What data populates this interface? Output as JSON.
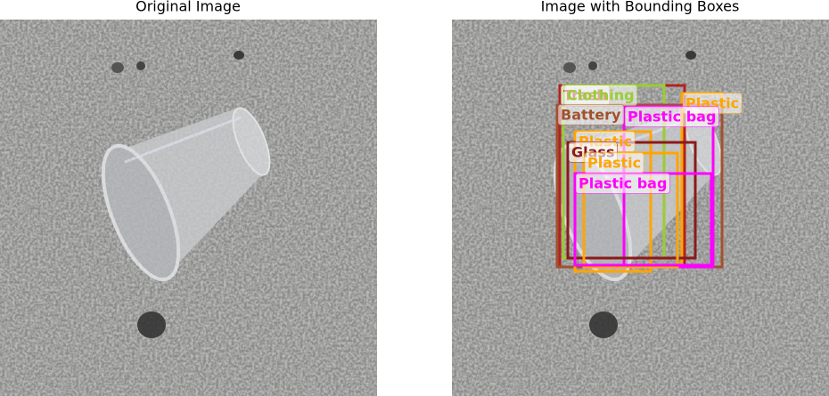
{
  "left_panel": {
    "title": "Original Image"
  },
  "right_panel": {
    "title": "Image with Bounding Boxes",
    "detections": [
      {
        "label": "Trash",
        "color": "#b22222"
      },
      {
        "label": "Clothing",
        "color": "#9acd32"
      },
      {
        "label": "Plastic",
        "color": "#ffa500"
      },
      {
        "label": "Battery",
        "color": "#a0522d"
      },
      {
        "label": "Plastic bag",
        "color": "#ff00ff"
      },
      {
        "label": "Plastic",
        "color": "#ffa500"
      },
      {
        "label": "Glass",
        "color": "#8b1a1a"
      },
      {
        "label": "Plastic",
        "color": "#ffa500"
      },
      {
        "label": "Plastic bag",
        "color": "#ff00ff"
      }
    ]
  }
}
